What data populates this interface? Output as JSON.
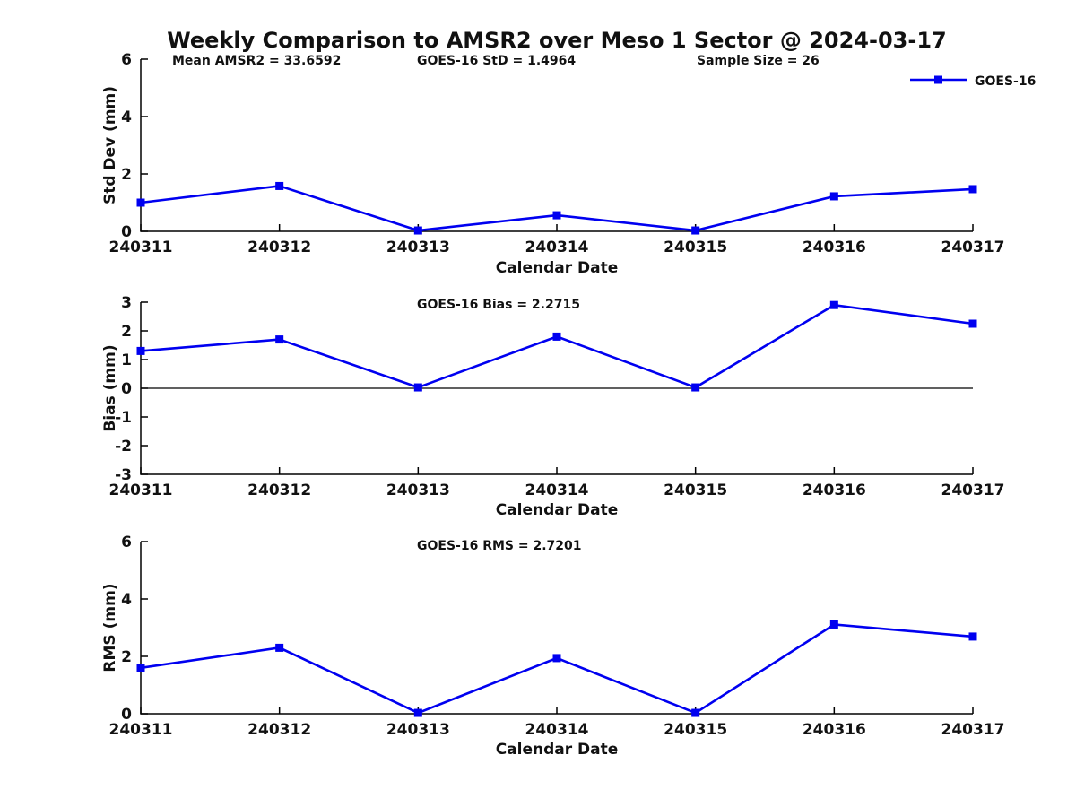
{
  "title": "Weekly Comparison to AMSR2 over Meso 1 Sector @ 2024-03-17",
  "legend": {
    "label": "GOES-16",
    "position": "top-right",
    "boxed": false
  },
  "colors": {
    "line": "#0000f0",
    "marker": "#0000f0",
    "axis": "#000000",
    "text": "#111111",
    "background": "#ffffff"
  },
  "chart_data": [
    {
      "type": "line",
      "ylabel": "Std Dev (mm)",
      "xlabel": "Calendar Date",
      "categories": [
        "240311",
        "240312",
        "240313",
        "240314",
        "240315",
        "240316",
        "240317"
      ],
      "series": [
        {
          "name": "GOES-16",
          "values": [
            1.0,
            1.58,
            0.03,
            0.56,
            0.03,
            1.22,
            1.47
          ]
        }
      ],
      "ylim": [
        0,
        6
      ],
      "yticks": [
        0,
        2,
        4,
        6
      ],
      "grid": false,
      "zero_line": false,
      "legend_position": "top-right",
      "annotations": [
        "Mean AMSR2 = 33.6592",
        "GOES-16 StD = 1.4964",
        "Sample Size = 26"
      ]
    },
    {
      "type": "line",
      "ylabel": "Bias (mm)",
      "xlabel": "Calendar Date",
      "categories": [
        "240311",
        "240312",
        "240313",
        "240314",
        "240315",
        "240316",
        "240317"
      ],
      "series": [
        {
          "name": "GOES-16",
          "values": [
            1.3,
            1.7,
            0.03,
            1.8,
            0.03,
            2.9,
            2.25
          ]
        }
      ],
      "ylim": [
        -3,
        3
      ],
      "yticks": [
        -3,
        -2,
        -1,
        0,
        1,
        2,
        3
      ],
      "grid": false,
      "zero_line": true,
      "legend_position": "none",
      "annotations": [
        "GOES-16 Bias  = 2.2715"
      ]
    },
    {
      "type": "line",
      "ylabel": "RMS (mm)",
      "xlabel": "Calendar Date",
      "categories": [
        "240311",
        "240312",
        "240313",
        "240314",
        "240315",
        "240316",
        "240317"
      ],
      "series": [
        {
          "name": "GOES-16",
          "values": [
            1.6,
            2.3,
            0.03,
            1.94,
            0.03,
            3.11,
            2.69
          ]
        }
      ],
      "ylim": [
        0,
        6
      ],
      "yticks": [
        0,
        2,
        4,
        6
      ],
      "grid": false,
      "zero_line": false,
      "legend_position": "none",
      "annotations": [
        "GOES-16 RMS = 2.7201"
      ]
    }
  ]
}
